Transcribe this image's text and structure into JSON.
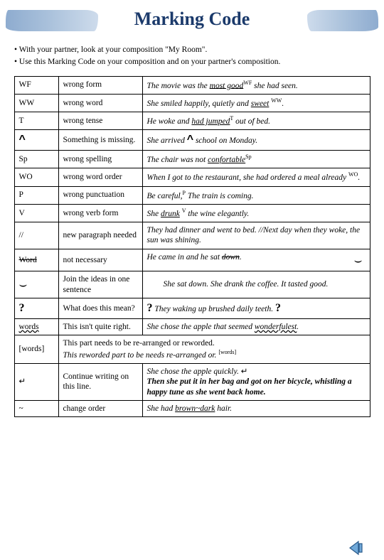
{
  "title": "Marking Code",
  "instructions": [
    "With your partner, look at your composition \"My Room\".",
    "Use this Marking Code on your composition and on your partner's composition."
  ],
  "rows": [
    {
      "code": "WF",
      "meaning": "wrong form",
      "example": "The movie was the <span class='ul'>most good</span><span class='sup'>WF</span> she had seen."
    },
    {
      "code": "WW",
      "meaning": "wrong word",
      "example": "She smiled happily, quietly and <span class='ul'>sweet</span> <span class='sup'>WW</span>."
    },
    {
      "code": "T",
      "meaning": "wrong tense",
      "example": "He woke and <span class='ul'>had jumped</span><span class='sup'>T</span> out of bed."
    },
    {
      "code": "<span class='caret'>^</span>",
      "meaning": "Something is missing.",
      "example": "She arrived <span class='caret n'>^</span> school on Monday."
    },
    {
      "code": "Sp",
      "meaning": "wrong spelling",
      "example": "The chair was not <span class='ul'>confortable</span><span class='sup'>Sp</span>"
    },
    {
      "code": "WO",
      "meaning": "wrong word order",
      "example": "When I got to the restaurant, she had ordered a meal already <span class='sup'>WO</span>."
    },
    {
      "code": "P",
      "meaning": "wrong punctuation",
      "example": "Be careful,<span class='sup'>P</span> The train is coming."
    },
    {
      "code": "V",
      "meaning": "wrong verb form",
      "example": "She <span class='ul'>drunk</span> <span class='sup'>V</span> the wine elegantly."
    },
    {
      "code": "//",
      "meaning": "new paragraph needed",
      "example": "They had dinner and went to bed. //Next day when they woke, the sun was shining."
    },
    {
      "code": "<span class='strike'>Word</span>",
      "meaning": "not necessary",
      "example": "He came in and he sat <span class='strike'>down</span>. <span class='arcright n'>⌣</span>"
    },
    {
      "code": "<span class='arc'>⌣</span>",
      "meaning": "Join the ideas in one sentence",
      "example": "&nbsp;&nbsp;&nbsp;&nbsp;&nbsp;&nbsp;&nbsp;&nbsp;She sat down. She drank the coffee. It tasted good."
    },
    {
      "code": "<span class='q'>?</span>",
      "meaning": "What does this mean?",
      "example": "<span class='q n'>?</span> They waking up brushed daily teeth. <span class='q n'>?</span>"
    },
    {
      "code": "<span class='wavy'>words</span>",
      "meaning": "This isn't quite right.",
      "example": "She chose the apple that seemed <span class='wavy'>wonderfulest</span>."
    },
    {
      "code": "[words]",
      "full": "<span class='n'>This part needs to be re-arranged or reworded.</span><br><i>This reworded part to be needs re-arranged or.</i> <span class='sup'>[words]</span>"
    },
    {
      "code": "<span class='crlf'>↵</span>",
      "meaning": "Continue writing on this line.",
      "example": "<i>She chose the apple quickly.</i> <span class='crlf n'>↵</span><br><span class='bolditalic'>Then she put it in her bag and got on her bicycle, whistling a happy tune as she went back home.</span>"
    },
    {
      "code": "~",
      "meaning": "change order",
      "example": "She had <span class='ul'>brown~dark</span> hair."
    }
  ],
  "colors": {
    "title": "#1b3a6b",
    "brush": "#9db8d6",
    "navFill": "#6fa8d8",
    "navBorder": "#2a5a8a"
  }
}
